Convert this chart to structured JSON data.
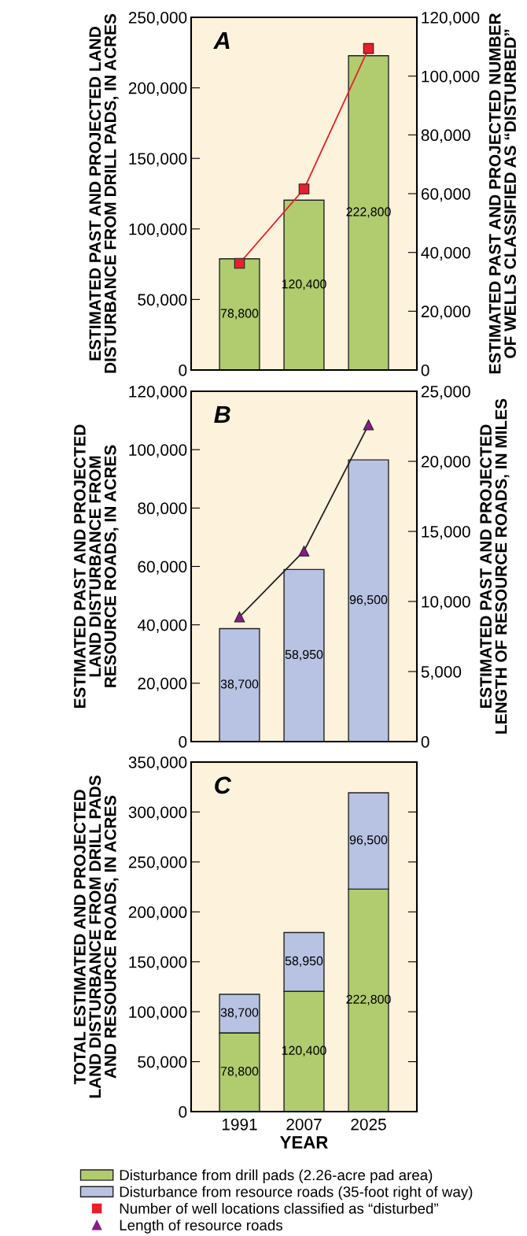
{
  "chart_data": [
    {
      "type": "bar",
      "title": "A",
      "categories": [
        "1991",
        "2007",
        "2025"
      ],
      "ylabel": "ESTIMATED PAST AND PROJECTED LAND\nDISTURBANCE FROM DRILL PADS, IN ACRES",
      "y2label": "ESTIMATED PAST AND PROJECTED NUMBER\nOF WELLS CLASSIFIED AS “DISTURBED”",
      "ylim": [
        0,
        250000
      ],
      "yticks": [
        {
          "value": 0,
          "label": "0"
        },
        {
          "value": 50000,
          "label": "50,000"
        },
        {
          "value": 100000,
          "label": "100,000"
        },
        {
          "value": 150000,
          "label": "150,000"
        },
        {
          "value": 200000,
          "label": "200,000"
        },
        {
          "value": 250000,
          "label": "250,000"
        }
      ],
      "y2lim": [
        0,
        120000
      ],
      "y2ticks": [
        {
          "value": 0,
          "label": "0"
        },
        {
          "value": 20000,
          "label": "20,000"
        },
        {
          "value": 40000,
          "label": "40,000"
        },
        {
          "value": 60000,
          "label": "60,000"
        },
        {
          "value": 80000,
          "label": "80,000"
        },
        {
          "value": 100000,
          "label": "100,000"
        },
        {
          "value": 120000,
          "label": "120,000"
        }
      ],
      "tick_labels": "y",
      "legend": "bottom",
      "series": [
        {
          "color": "#b0cc6e",
          "values": [
            78800,
            120400,
            222800
          ],
          "value_labels": [
            "78,800",
            "120,400",
            "222,800"
          ]
        },
        {
          "type": "line",
          "axis": "y2",
          "name": "Number of well locations classified as “disturbed”",
          "color": "#e8202a",
          "marker": "square",
          "values": [
            36300,
            61600,
            109400
          ]
        }
      ]
    },
    {
      "type": "bar",
      "title": "B",
      "categories": [
        "1991",
        "2007",
        "2025"
      ],
      "ylabel": "ESTIMATED PAST AND PROJECTED\nLAND DISTURBANCE FROM\nRESOURCE ROADS, IN ACRES",
      "y2label": "ESTIMATED PAST AND PROJECTED\nLENGTH OF RESOURCE ROADS, IN MILES",
      "ylim": [
        0,
        120000
      ],
      "yticks": [
        {
          "value": 0,
          "label": "0"
        },
        {
          "value": 20000,
          "label": "20,000"
        },
        {
          "value": 40000,
          "label": "40,000"
        },
        {
          "value": 60000,
          "label": "60,000"
        },
        {
          "value": 80000,
          "label": "80,000"
        },
        {
          "value": 100000,
          "label": "100,000"
        },
        {
          "value": 120000,
          "label": "120,000"
        }
      ],
      "y2lim": [
        0,
        25000
      ],
      "y2ticks": [
        {
          "value": 0,
          "label": "0"
        },
        {
          "value": 5000,
          "label": "5,000"
        },
        {
          "value": 10000,
          "label": "10,000"
        },
        {
          "value": 15000,
          "label": "15,000"
        },
        {
          "value": 20000,
          "label": "20,000"
        },
        {
          "value": 25000,
          "label": "25,000"
        }
      ],
      "tick_labels": "y",
      "legend": "bottom",
      "series": [
        {
          "color": "#b8c2e2",
          "values": [
            38700,
            58950,
            96500
          ],
          "value_labels": [
            "38,700",
            "58,950",
            "96,500"
          ]
        },
        {
          "type": "line",
          "axis": "y2",
          "name": "Length of resource roads",
          "color": "#8b1a8b",
          "marker": "triangle",
          "values": [
            8900,
            13600,
            22600
          ]
        }
      ]
    },
    {
      "type": "bar",
      "title": "C",
      "stacked": true,
      "categories": [
        "1991",
        "2007",
        "2025"
      ],
      "xlabel": "YEAR",
      "ylabel": "TOTAL ESTIMATED AND PROJECTED\nLAND DISTURBANCE FROM DRILL PADS\nAND RESOURCE ROADS, IN ACRES",
      "ylim": [
        0,
        350000
      ],
      "yticks": [
        {
          "value": 0,
          "label": "0"
        },
        {
          "value": 50000,
          "label": "50,000"
        },
        {
          "value": 100000,
          "label": "100,000"
        },
        {
          "value": 150000,
          "label": "150,000"
        },
        {
          "value": 200000,
          "label": "200,000"
        },
        {
          "value": 250000,
          "label": "250,000"
        },
        {
          "value": 300000,
          "label": "300,000"
        },
        {
          "value": 350000,
          "label": "350,000"
        }
      ],
      "legend": "bottom",
      "series": [
        {
          "name": "Disturbance from drill pads (2.26-acre pad area)",
          "color": "#b0cc6e",
          "values": [
            78800,
            120400,
            222800
          ],
          "value_labels": [
            "78,800",
            "120,400",
            "222,800"
          ]
        },
        {
          "name": "Disturbance from resource roads (35-foot right of way)",
          "color": "#b8c2e2",
          "values": [
            38700,
            58950,
            96500
          ],
          "value_labels": [
            "38,700",
            "58,950",
            "96,500"
          ]
        }
      ]
    }
  ]
}
